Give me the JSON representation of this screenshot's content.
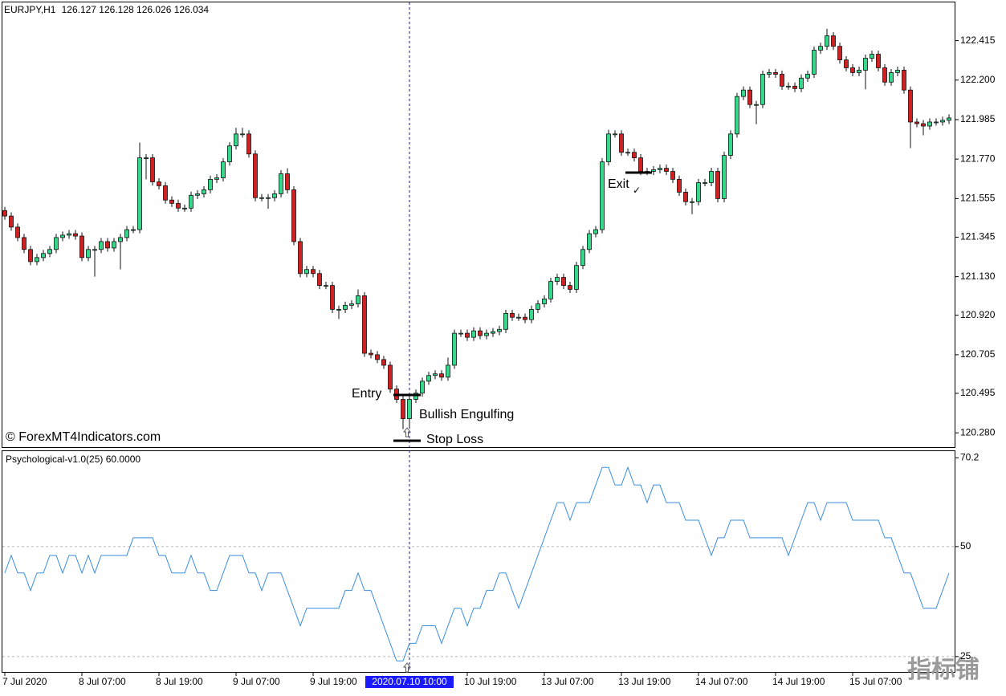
{
  "chart_data": [
    {
      "type": "candlestick",
      "title": "EURJPY,H1",
      "subtitle": "126.127 126.128 126.026 126.034",
      "crosshair_category": "2020.07.10 10:00",
      "up_color": "#34d98a",
      "down_color": "#d21f1f",
      "outline_color": "#111111",
      "ylim": [
        120.202,
        122.623
      ],
      "yticks": [
        122.415,
        {
          "value": 122.2,
          "label": "122.200"
        },
        121.985,
        {
          "value": 121.77,
          "label": "121.770"
        },
        121.555,
        121.345,
        {
          "value": 121.13,
          "label": "121.130"
        },
        {
          "value": 120.92,
          "label": "120.920"
        },
        120.705,
        120.495,
        {
          "value": 120.28,
          "label": "120.280"
        }
      ],
      "categories": [
        "7 Jul 2020",
        null,
        null,
        null,
        null,
        null,
        null,
        null,
        null,
        null,
        null,
        null,
        "8 Jul 07:00",
        null,
        null,
        null,
        null,
        null,
        null,
        null,
        null,
        null,
        null,
        null,
        "8 Jul 19:00",
        null,
        null,
        null,
        null,
        null,
        null,
        null,
        null,
        null,
        null,
        null,
        "9 Jul 07:00",
        null,
        null,
        null,
        null,
        null,
        null,
        null,
        null,
        null,
        null,
        null,
        "9 Jul 19:00",
        null,
        null,
        null,
        null,
        null,
        null,
        null,
        null,
        null,
        null,
        null,
        null,
        null,
        null,
        "2020.07.10 10:00",
        null,
        null,
        null,
        null,
        null,
        null,
        null,
        null,
        "10 Jul 19:00",
        null,
        null,
        null,
        null,
        null,
        null,
        null,
        null,
        null,
        null,
        null,
        "13 Jul 07:00",
        null,
        null,
        null,
        null,
        null,
        null,
        null,
        null,
        null,
        null,
        null,
        "13 Jul 19:00",
        null,
        null,
        null,
        null,
        null,
        null,
        null,
        null,
        null,
        null,
        null,
        "14 Jul 07:00",
        null,
        null,
        null,
        null,
        null,
        null,
        null,
        null,
        null,
        null,
        null,
        "14 Jul 19:00",
        null,
        null,
        null,
        null,
        null,
        null,
        null,
        null,
        null,
        null,
        null,
        "15 Jul 07:00",
        null,
        null,
        null,
        null,
        null,
        null,
        null,
        null,
        null,
        null,
        null,
        null,
        null,
        null,
        null
      ],
      "open": [
        121.49,
        121.46,
        121.4,
        121.343,
        121.278,
        121.212,
        121.234,
        121.256,
        121.278,
        121.343,
        121.356,
        121.364,
        121.351,
        121.234,
        121.278,
        121.278,
        121.321,
        121.286,
        121.321,
        121.343,
        121.386,
        121.386,
        121.777,
        121.777,
        121.646,
        121.625,
        121.547,
        121.529,
        121.503,
        121.503,
        121.573,
        121.581,
        121.603,
        121.66,
        121.668,
        121.755,
        121.842,
        121.907,
        121.907,
        121.798,
        121.56,
        121.56,
        121.56,
        121.581,
        121.69,
        121.603,
        121.321,
        121.147,
        121.169,
        121.147,
        121.082,
        121.082,
        120.952,
        120.952,
        120.974,
        120.982,
        121.026,
        120.713,
        120.705,
        120.679,
        120.648,
        120.518,
        120.462,
        120.357,
        120.462,
        120.496,
        120.561,
        120.592,
        120.601,
        120.583,
        120.648,
        120.822,
        120.822,
        120.8,
        120.835,
        120.809,
        120.822,
        120.831,
        120.843,
        120.93,
        120.909,
        120.909,
        120.896,
        120.952,
        120.982,
        121.009,
        121.104,
        121.126,
        121.082,
        121.061,
        121.191,
        121.278,
        121.364,
        121.386,
        121.755,
        121.907,
        121.907,
        121.807,
        121.807,
        121.777,
        121.703,
        121.703,
        121.712,
        121.72,
        121.703,
        121.66,
        121.59,
        121.538,
        121.538,
        121.642,
        121.642,
        121.703,
        121.555,
        121.79,
        121.907,
        122.111,
        122.146,
        122.067,
        122.067,
        122.232,
        122.241,
        122.232,
        122.167,
        122.167,
        122.154,
        122.211,
        122.232,
        122.363,
        122.384,
        122.441,
        122.384,
        122.31,
        122.267,
        122.241,
        122.254,
        122.319,
        122.341,
        122.267,
        122.189,
        122.241,
        122.254,
        122.146,
        121.972,
        121.963,
        121.95,
        121.972,
        121.972,
        121.981
      ],
      "high": [
        121.51,
        121.48,
        121.42,
        121.363,
        121.298,
        121.254,
        121.276,
        121.298,
        121.363,
        121.376,
        121.384,
        121.384,
        121.371,
        121.298,
        121.298,
        121.341,
        121.341,
        121.341,
        121.363,
        121.406,
        121.406,
        121.86,
        121.797,
        121.797,
        121.666,
        121.645,
        121.567,
        121.549,
        121.523,
        121.593,
        121.601,
        121.623,
        121.68,
        121.688,
        121.775,
        121.862,
        121.94,
        121.94,
        121.927,
        121.818,
        121.58,
        121.58,
        121.601,
        121.71,
        121.72,
        121.623,
        121.341,
        121.189,
        121.189,
        121.167,
        121.102,
        121.102,
        120.972,
        120.994,
        121.002,
        121.06,
        121.046,
        120.733,
        120.725,
        120.699,
        120.668,
        120.538,
        120.482,
        120.482,
        120.516,
        120.581,
        120.612,
        120.621,
        120.621,
        120.69,
        120.842,
        120.842,
        120.842,
        120.855,
        120.855,
        120.842,
        120.851,
        120.863,
        120.95,
        120.95,
        120.929,
        120.929,
        120.972,
        121.002,
        121.029,
        121.124,
        121.146,
        121.146,
        121.102,
        121.211,
        121.298,
        121.384,
        121.406,
        121.775,
        121.93,
        121.927,
        121.927,
        121.827,
        121.827,
        121.797,
        121.723,
        121.732,
        121.74,
        121.74,
        121.723,
        121.68,
        121.61,
        121.558,
        121.662,
        121.662,
        121.723,
        121.723,
        121.81,
        121.927,
        122.131,
        122.166,
        122.166,
        122.087,
        122.252,
        122.261,
        122.261,
        122.252,
        122.187,
        122.187,
        122.231,
        122.252,
        122.383,
        122.404,
        122.48,
        122.461,
        122.404,
        122.33,
        122.287,
        122.274,
        122.339,
        122.361,
        122.361,
        122.287,
        122.261,
        122.274,
        122.274,
        122.166,
        121.992,
        121.983,
        121.992,
        121.992,
        122.001,
        122.014
      ],
      "low": [
        121.44,
        121.38,
        121.323,
        121.258,
        121.192,
        121.192,
        121.214,
        121.236,
        121.258,
        121.323,
        121.336,
        121.331,
        121.214,
        121.214,
        121.13,
        121.258,
        121.266,
        121.266,
        121.17,
        121.323,
        121.366,
        121.366,
        121.66,
        121.626,
        121.605,
        121.527,
        121.509,
        121.483,
        121.483,
        121.483,
        121.553,
        121.561,
        121.583,
        121.64,
        121.648,
        121.735,
        121.822,
        121.887,
        121.778,
        121.54,
        121.54,
        121.5,
        121.54,
        121.561,
        121.583,
        121.301,
        121.127,
        121.127,
        121.127,
        121.062,
        121.062,
        120.932,
        120.9,
        120.932,
        120.954,
        120.962,
        120.693,
        120.685,
        120.659,
        120.628,
        120.498,
        120.442,
        120.3,
        120.31,
        120.442,
        120.476,
        120.541,
        120.572,
        120.563,
        120.563,
        120.628,
        120.802,
        120.78,
        120.78,
        120.789,
        120.789,
        120.802,
        120.811,
        120.823,
        120.889,
        120.889,
        120.876,
        120.876,
        120.932,
        120.962,
        120.989,
        121.084,
        121.062,
        121.041,
        121.041,
        121.171,
        121.258,
        121.344,
        121.366,
        121.735,
        121.887,
        121.787,
        121.787,
        121.757,
        121.683,
        121.683,
        121.683,
        121.692,
        121.683,
        121.64,
        121.57,
        121.518,
        121.47,
        121.518,
        121.622,
        121.622,
        121.535,
        121.535,
        121.77,
        121.887,
        122.091,
        122.047,
        121.96,
        122.047,
        122.212,
        122.212,
        122.147,
        122.147,
        122.134,
        122.134,
        122.191,
        122.212,
        122.343,
        122.364,
        122.364,
        122.29,
        122.247,
        122.221,
        122.221,
        122.15,
        122.299,
        122.247,
        122.169,
        122.169,
        122.221,
        122.126,
        121.83,
        121.943,
        121.9,
        121.93,
        121.952,
        121.952,
        121.961
      ],
      "close": [
        121.46,
        121.4,
        121.343,
        121.278,
        121.212,
        121.234,
        121.256,
        121.278,
        121.343,
        121.356,
        121.364,
        121.351,
        121.234,
        121.278,
        121.278,
        121.321,
        121.286,
        121.321,
        121.343,
        121.386,
        121.386,
        121.777,
        121.777,
        121.646,
        121.625,
        121.547,
        121.529,
        121.503,
        121.503,
        121.573,
        121.581,
        121.603,
        121.66,
        121.668,
        121.755,
        121.842,
        121.907,
        121.907,
        121.798,
        121.56,
        121.56,
        121.56,
        121.581,
        121.69,
        121.603,
        121.321,
        121.147,
        121.169,
        121.147,
        121.082,
        121.082,
        120.952,
        120.952,
        120.974,
        120.982,
        121.026,
        120.713,
        120.705,
        120.679,
        120.648,
        120.518,
        120.462,
        120.357,
        120.462,
        120.496,
        120.561,
        120.592,
        120.601,
        120.583,
        120.648,
        120.822,
        120.822,
        120.8,
        120.835,
        120.809,
        120.822,
        120.831,
        120.843,
        120.93,
        120.909,
        120.909,
        120.896,
        120.952,
        120.982,
        121.009,
        121.104,
        121.126,
        121.082,
        121.061,
        121.191,
        121.278,
        121.364,
        121.386,
        121.755,
        121.907,
        121.907,
        121.807,
        121.807,
        121.777,
        121.703,
        121.703,
        121.712,
        121.72,
        121.703,
        121.66,
        121.59,
        121.538,
        121.538,
        121.642,
        121.642,
        121.703,
        121.555,
        121.79,
        121.907,
        122.111,
        122.146,
        122.067,
        122.067,
        122.232,
        122.241,
        122.232,
        122.167,
        122.167,
        122.154,
        122.211,
        122.232,
        122.363,
        122.384,
        122.441,
        122.384,
        122.31,
        122.267,
        122.241,
        122.254,
        122.319,
        122.341,
        122.267,
        122.189,
        122.241,
        122.254,
        122.146,
        121.972,
        121.963,
        121.95,
        121.972,
        121.972,
        121.981,
        121.994
      ]
    },
    {
      "type": "line",
      "title": "Psychological-v1.0(25) 60.0000",
      "color": "#3b8ee0",
      "ylim": [
        21.5,
        71.7
      ],
      "yticks": [
        70.2,
        50,
        25
      ],
      "levels": [
        50,
        25
      ],
      "values": [
        44,
        48,
        44,
        44,
        40,
        44,
        44,
        48,
        48,
        44,
        48,
        48,
        44,
        48,
        44,
        48,
        48,
        48,
        48,
        48,
        52,
        52,
        52,
        52,
        48,
        48,
        44,
        44,
        44,
        48,
        44,
        44,
        40,
        40,
        44,
        48,
        48,
        48,
        44,
        44,
        40,
        44,
        44,
        44,
        40,
        36,
        32,
        36,
        36,
        36,
        36,
        36,
        36,
        40,
        40,
        44,
        40,
        40,
        36,
        32,
        28,
        24,
        24,
        28,
        28,
        32,
        32,
        32,
        28,
        32,
        36,
        36,
        32,
        36,
        36,
        40,
        40,
        44,
        44,
        40,
        36,
        40,
        44,
        48,
        52,
        56,
        60,
        60,
        56,
        60,
        60,
        60,
        64,
        68,
        68,
        64,
        64,
        68,
        64,
        64,
        60,
        64,
        64,
        60,
        60,
        60,
        56,
        56,
        56,
        52,
        48,
        52,
        52,
        56,
        56,
        56,
        52,
        52,
        52,
        52,
        52,
        52,
        48,
        52,
        56,
        60,
        60,
        56,
        60,
        60,
        60,
        60,
        56,
        56,
        56,
        56,
        56,
        52,
        52,
        48,
        44,
        44,
        40,
        36,
        36,
        36,
        40,
        44
      ]
    }
  ],
  "annotations": {
    "entry": "Entry",
    "pattern": "Bullish Engulfing",
    "stop": "Stop Loss",
    "exit": "Exit",
    "exit_mark": "✓",
    "copyright": "© ForexMT4Indicators.com",
    "watermark": "指标铺"
  }
}
